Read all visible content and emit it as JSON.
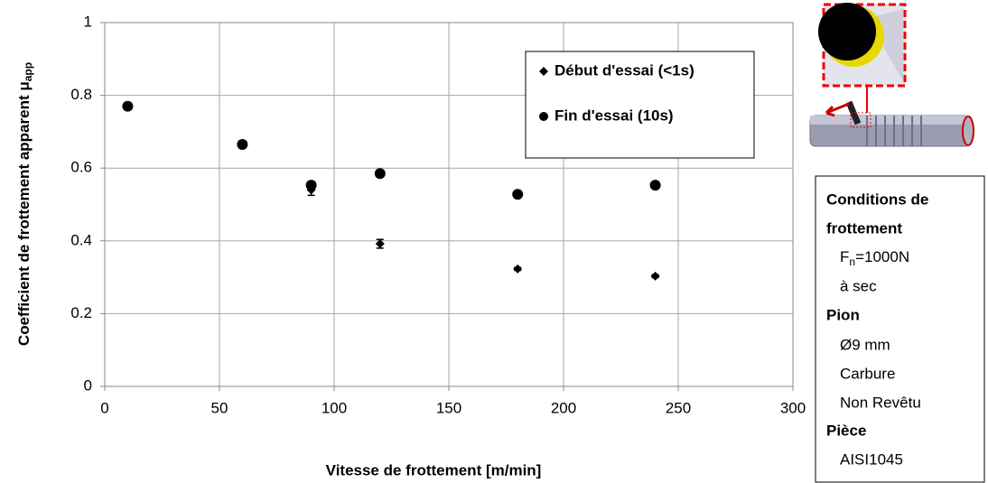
{
  "chart_data": {
    "type": "scatter",
    "xlabel": "Vitesse de frottement [m/min]",
    "ylabel": "Coefficient de frottement apparent μ",
    "ylabel_sub": "app",
    "x": [
      10,
      60,
      90,
      120,
      180,
      240
    ],
    "series": [
      {
        "name": "Début d'essai  (<1s)",
        "marker": "diamond",
        "color": "#000000",
        "values": [
          0.77,
          0.665,
          0.54,
          0.392,
          0.323,
          0.303
        ],
        "errors": [
          0.01,
          0.01,
          0.015,
          0.012,
          0.004,
          0.004
        ]
      },
      {
        "name": "Fin d'essai (10s)",
        "marker": "circle",
        "color": "#000000",
        "values": [
          0.77,
          0.665,
          0.553,
          0.585,
          0.528,
          0.553
        ],
        "errors": [
          0.005,
          0.005,
          0.01,
          0.005,
          0.004,
          0.004
        ]
      }
    ],
    "xlim": [
      0,
      300
    ],
    "xticks": [
      0,
      50,
      100,
      150,
      200,
      250,
      300
    ],
    "ylim": [
      0,
      1
    ],
    "yticks": [
      0,
      0.2,
      0.4,
      0.6,
      0.8,
      1
    ],
    "grid": true,
    "legend": "upper right"
  },
  "side_panel": {
    "heading": [
      "Conditions de",
      "frottement"
    ],
    "force": {
      "symbol": "F",
      "sub": "n",
      "rest": "=1000N"
    },
    "lubrication": "à sec",
    "pin_title": "Pion",
    "pin": [
      "Ø9 mm",
      "Carbure",
      "Non Revêtu"
    ],
    "part_title": "Pièce",
    "part": "AISI1045"
  }
}
